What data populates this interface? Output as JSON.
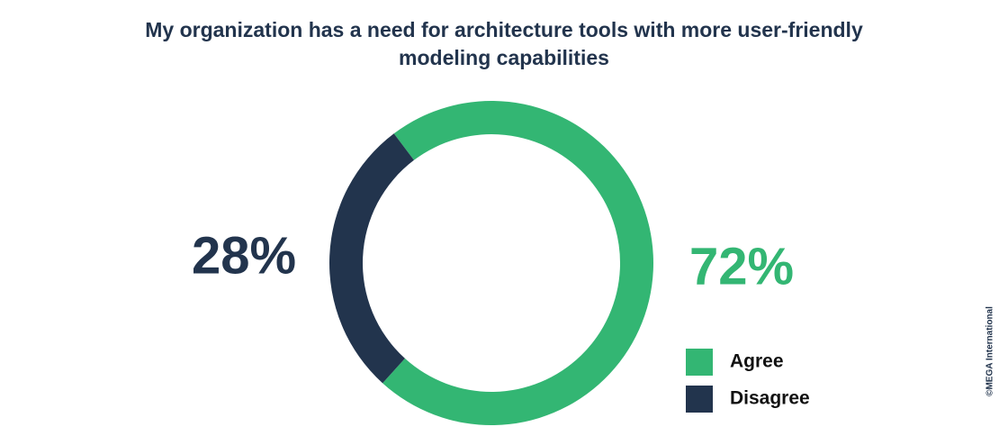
{
  "chart_data": {
    "type": "donut",
    "title": "My organization has a need for architecture tools with more user-friendly modeling capabilities",
    "categories": [
      "Agree",
      "Disagree"
    ],
    "values": [
      72,
      28
    ],
    "value_labels": [
      "72%",
      "28%"
    ],
    "colors": [
      "#33b673",
      "#22344d"
    ],
    "credit": "©MEGA International"
  }
}
